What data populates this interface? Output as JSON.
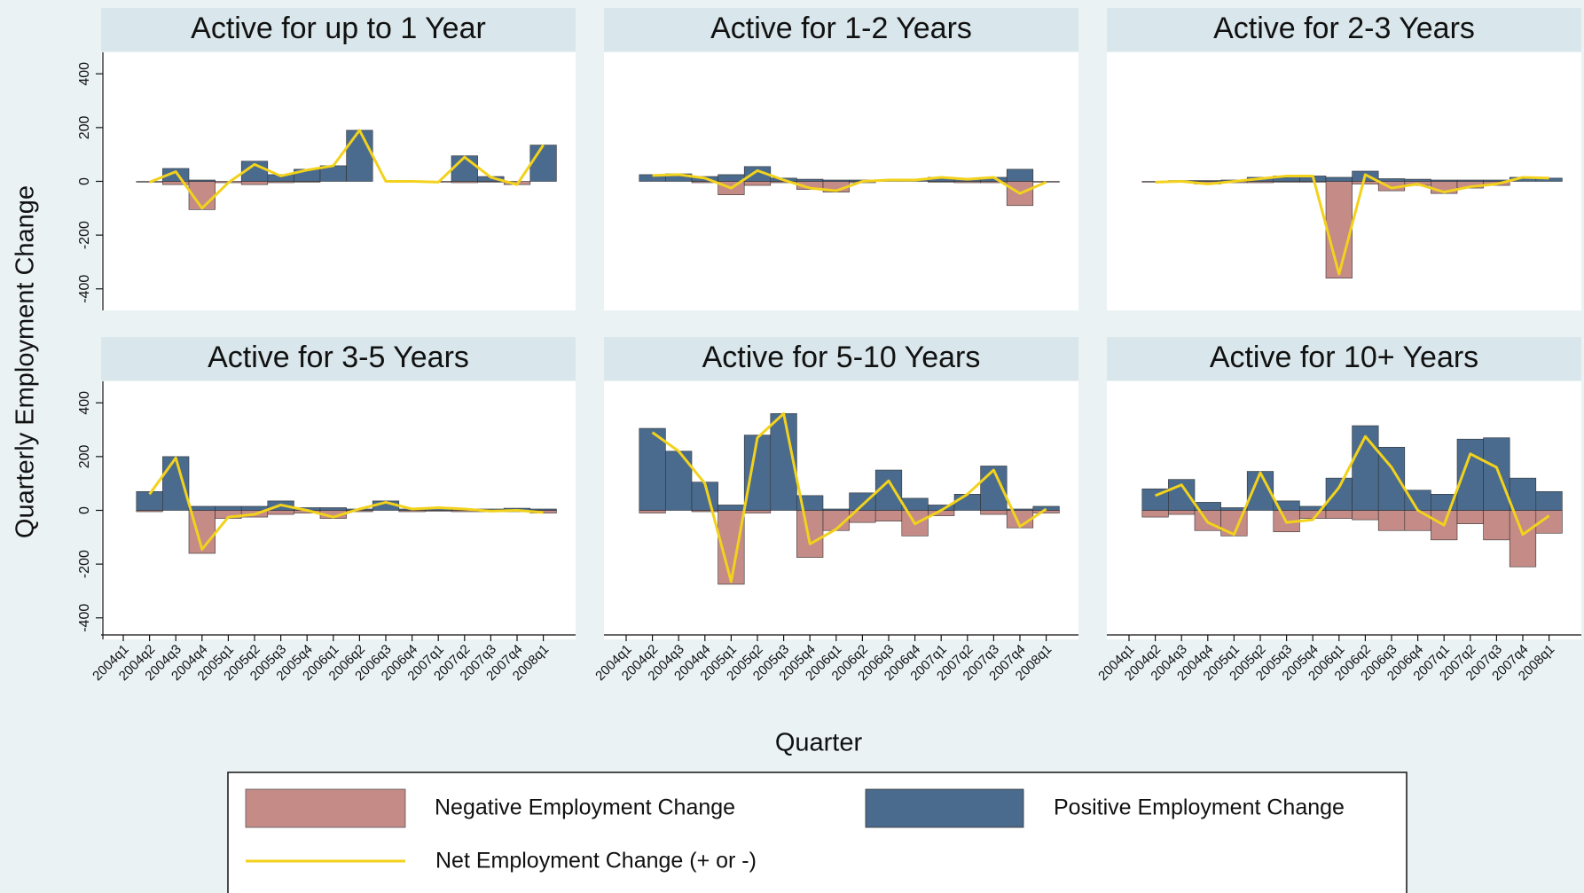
{
  "ylabel": "Quarterly Employment Change",
  "xlabel": "Quarter",
  "chart_data": [
    {
      "type": "bar",
      "title": "Active for up to 1 Year",
      "categories": [
        "2004q1",
        "2004q2",
        "2004q3",
        "2004q4",
        "2005q1",
        "2005q2",
        "2005q3",
        "2005q4",
        "2006q1",
        "2006q2",
        "2006q3",
        "2006q4",
        "2007q1",
        "2007q2",
        "2007q3",
        "2007q4",
        "2008q1"
      ],
      "ylim": [
        -480,
        480
      ],
      "yticks": [
        -400,
        -200,
        0,
        200,
        400
      ],
      "series": [
        {
          "name": "Negative Employment Change",
          "color": "#c48b87",
          "values": [
            null,
            -3,
            -12,
            -105,
            -5,
            -12,
            -5,
            -3,
            0,
            0,
            0,
            0,
            -3,
            -5,
            -3,
            -12,
            0
          ]
        },
        {
          "name": "Positive Employment Change",
          "color": "#4a6b8d",
          "values": [
            null,
            0,
            48,
            5,
            0,
            75,
            25,
            45,
            58,
            190,
            0,
            0,
            0,
            95,
            18,
            0,
            135
          ]
        },
        {
          "name": "Net Employment Change (+ or -)",
          "color": "#f2d21c",
          "values": [
            null,
            -3,
            36,
            -100,
            -5,
            63,
            20,
            42,
            58,
            190,
            0,
            0,
            -3,
            90,
            15,
            -12,
            135
          ]
        }
      ]
    },
    {
      "type": "bar",
      "title": "Active for 1-2 Years",
      "categories": [
        "2004q1",
        "2004q2",
        "2004q3",
        "2004q4",
        "2005q1",
        "2005q2",
        "2005q3",
        "2005q4",
        "2006q1",
        "2006q2",
        "2006q3",
        "2006q4",
        "2007q1",
        "2007q2",
        "2007q3",
        "2007q4",
        "2008q1"
      ],
      "ylim": [
        -480,
        480
      ],
      "yticks": [
        -400,
        -200,
        0,
        200,
        400
      ],
      "series": [
        {
          "name": "Negative Employment Change",
          "color": "#c48b87",
          "values": [
            null,
            0,
            0,
            -5,
            -50,
            -15,
            -5,
            -30,
            -40,
            -5,
            0,
            0,
            -3,
            -5,
            -5,
            -90,
            -3
          ]
        },
        {
          "name": "Positive Employment Change",
          "color": "#4a6b8d",
          "values": [
            null,
            25,
            28,
            18,
            25,
            55,
            12,
            8,
            5,
            5,
            5,
            8,
            15,
            10,
            15,
            45,
            0
          ]
        },
        {
          "name": "Net Employment Change (+ or -)",
          "color": "#f2d21c",
          "values": [
            null,
            22,
            25,
            12,
            -25,
            40,
            5,
            -25,
            -35,
            0,
            5,
            5,
            15,
            8,
            15,
            -45,
            -3
          ]
        }
      ]
    },
    {
      "type": "bar",
      "title": "Active for 2-3 Years",
      "categories": [
        "2004q1",
        "2004q2",
        "2004q3",
        "2004q4",
        "2005q1",
        "2005q2",
        "2005q3",
        "2005q4",
        "2006q1",
        "2006q2",
        "2006q3",
        "2006q4",
        "2007q1",
        "2007q2",
        "2007q3",
        "2007q4",
        "2008q1"
      ],
      "ylim": [
        -480,
        480
      ],
      "yticks": [
        -400,
        -200,
        0,
        200,
        400
      ],
      "series": [
        {
          "name": "Negative Employment Change",
          "color": "#c48b87",
          "values": [
            null,
            -3,
            -3,
            -10,
            -5,
            -5,
            -3,
            -3,
            -360,
            -10,
            -35,
            -15,
            -45,
            -25,
            -15,
            0,
            0
          ]
        },
        {
          "name": "Positive Employment Change",
          "color": "#4a6b8d",
          "values": [
            null,
            0,
            3,
            3,
            5,
            15,
            20,
            20,
            15,
            38,
            10,
            8,
            5,
            5,
            5,
            15,
            12
          ]
        },
        {
          "name": "Net Employment Change (+ or -)",
          "color": "#f2d21c",
          "values": [
            null,
            -3,
            0,
            -10,
            0,
            10,
            20,
            20,
            -345,
            25,
            -25,
            -10,
            -40,
            -20,
            -10,
            15,
            12
          ]
        }
      ]
    },
    {
      "type": "bar",
      "title": "Active for 3-5 Years",
      "categories": [
        "2004q1",
        "2004q2",
        "2004q3",
        "2004q4",
        "2005q1",
        "2005q2",
        "2005q3",
        "2005q4",
        "2006q1",
        "2006q2",
        "2006q3",
        "2006q4",
        "2007q1",
        "2007q2",
        "2007q3",
        "2007q4",
        "2008q1"
      ],
      "ylim": [
        -480,
        480
      ],
      "yticks": [
        -400,
        -200,
        0,
        200,
        400
      ],
      "series": [
        {
          "name": "Negative Employment Change",
          "color": "#c48b87",
          "values": [
            null,
            -5,
            0,
            -160,
            -30,
            -25,
            -15,
            -10,
            -30,
            -5,
            0,
            -5,
            -3,
            -5,
            -5,
            -5,
            -10
          ]
        },
        {
          "name": "Positive Employment Change",
          "color": "#4a6b8d",
          "values": [
            null,
            70,
            200,
            15,
            15,
            15,
            35,
            10,
            10,
            5,
            35,
            5,
            10,
            5,
            5,
            8,
            5
          ]
        },
        {
          "name": "Net Employment Change (+ or -)",
          "color": "#f2d21c",
          "values": [
            null,
            60,
            195,
            -145,
            -25,
            -15,
            20,
            0,
            -25,
            5,
            30,
            5,
            10,
            5,
            -3,
            0,
            -8
          ]
        }
      ]
    },
    {
      "type": "bar",
      "title": "Active for 5-10 Years",
      "categories": [
        "2004q1",
        "2004q2",
        "2004q3",
        "2004q4",
        "2005q1",
        "2005q2",
        "2005q3",
        "2005q4",
        "2006q1",
        "2006q2",
        "2006q3",
        "2006q4",
        "2007q1",
        "2007q2",
        "2007q3",
        "2007q4",
        "2008q1"
      ],
      "ylim": [
        -480,
        480
      ],
      "yticks": [
        -400,
        -200,
        0,
        200,
        400
      ],
      "series": [
        {
          "name": "Negative Employment Change",
          "color": "#c48b87",
          "values": [
            null,
            -10,
            0,
            -5,
            -275,
            -10,
            0,
            -175,
            -75,
            -45,
            -40,
            -95,
            -20,
            0,
            -15,
            -65,
            -10
          ]
        },
        {
          "name": "Positive Employment Change",
          "color": "#4a6b8d",
          "values": [
            null,
            305,
            220,
            105,
            20,
            280,
            360,
            55,
            5,
            65,
            150,
            45,
            20,
            60,
            165,
            5,
            15
          ]
        },
        {
          "name": "Net Employment Change (+ or -)",
          "color": "#f2d21c",
          "values": [
            null,
            290,
            220,
            100,
            -265,
            270,
            360,
            -125,
            -70,
            20,
            110,
            -50,
            0,
            60,
            150,
            -60,
            5
          ]
        }
      ]
    },
    {
      "type": "bar",
      "title": "Active for 10+ Years",
      "categories": [
        "2004q1",
        "2004q2",
        "2004q3",
        "2004q4",
        "2005q1",
        "2005q2",
        "2005q3",
        "2005q4",
        "2006q1",
        "2006q2",
        "2006q3",
        "2006q4",
        "2007q1",
        "2007q2",
        "2007q3",
        "2007q4",
        "2008q1"
      ],
      "ylim": [
        -480,
        480
      ],
      "yticks": [
        -400,
        -200,
        0,
        200,
        400
      ],
      "series": [
        {
          "name": "Negative Employment Change",
          "color": "#c48b87",
          "values": [
            null,
            -25,
            -15,
            -75,
            -95,
            0,
            -80,
            -30,
            -30,
            -35,
            -75,
            -75,
            -110,
            -50,
            -110,
            -210,
            -85
          ]
        },
        {
          "name": "Positive Employment Change",
          "color": "#4a6b8d",
          "values": [
            null,
            80,
            115,
            30,
            10,
            145,
            35,
            15,
            120,
            315,
            235,
            75,
            60,
            265,
            270,
            120,
            70
          ]
        },
        {
          "name": "Net Employment Change (+ or -)",
          "color": "#f2d21c",
          "values": [
            null,
            55,
            95,
            -45,
            -90,
            140,
            -45,
            -35,
            85,
            275,
            160,
            0,
            -55,
            210,
            160,
            -90,
            -20
          ]
        }
      ]
    }
  ]
}
